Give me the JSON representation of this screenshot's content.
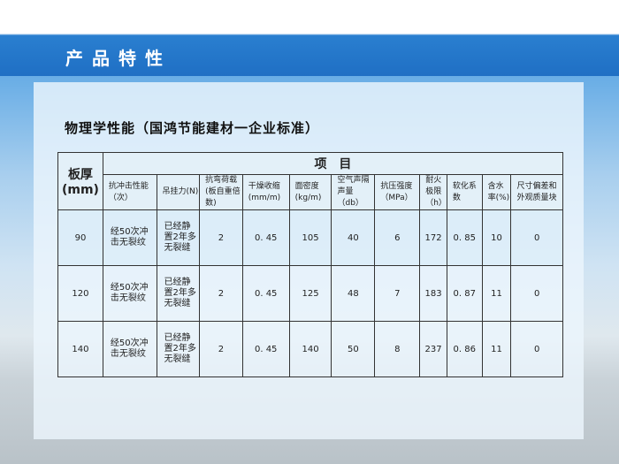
{
  "header": {
    "title": "产品特性"
  },
  "subtitle": "物理学性能（国鸿节能建材一企业标准）",
  "table": {
    "corner_line1": "板厚",
    "corner_line2": "(mm)",
    "group": "项　目",
    "columns": [
      "抗冲击性能（次）",
      "吊挂力(N)",
      "抗弯荷载(板自重倍数)",
      "干燥收缩(mm/m)",
      "面密度(kg/m)",
      "空气声隔声量（db）",
      "抗压强度（MPa）",
      "耐火极限（h）",
      "软化系数",
      "含水率(%)",
      "尺寸偏差和外观质量块"
    ],
    "rows": [
      {
        "thickness": "90",
        "values": [
          "经50次冲击无裂纹",
          "已经静置2年多无裂缝",
          "2",
          "0. 45",
          "105",
          "40",
          "6",
          "172",
          "0. 85",
          "10",
          "0"
        ]
      },
      {
        "thickness": "120",
        "values": [
          "经50次冲击无裂纹",
          "已经静置2年多无裂缝",
          "2",
          "0. 45",
          "125",
          "48",
          "7",
          "183",
          "0. 87",
          "11",
          "0"
        ]
      },
      {
        "thickness": "140",
        "values": [
          "经50次冲击无裂纹",
          "已经静置2年多无裂缝",
          "2",
          "0. 45",
          "140",
          "50",
          "8",
          "237",
          "0. 86",
          "11",
          "0"
        ]
      }
    ]
  }
}
